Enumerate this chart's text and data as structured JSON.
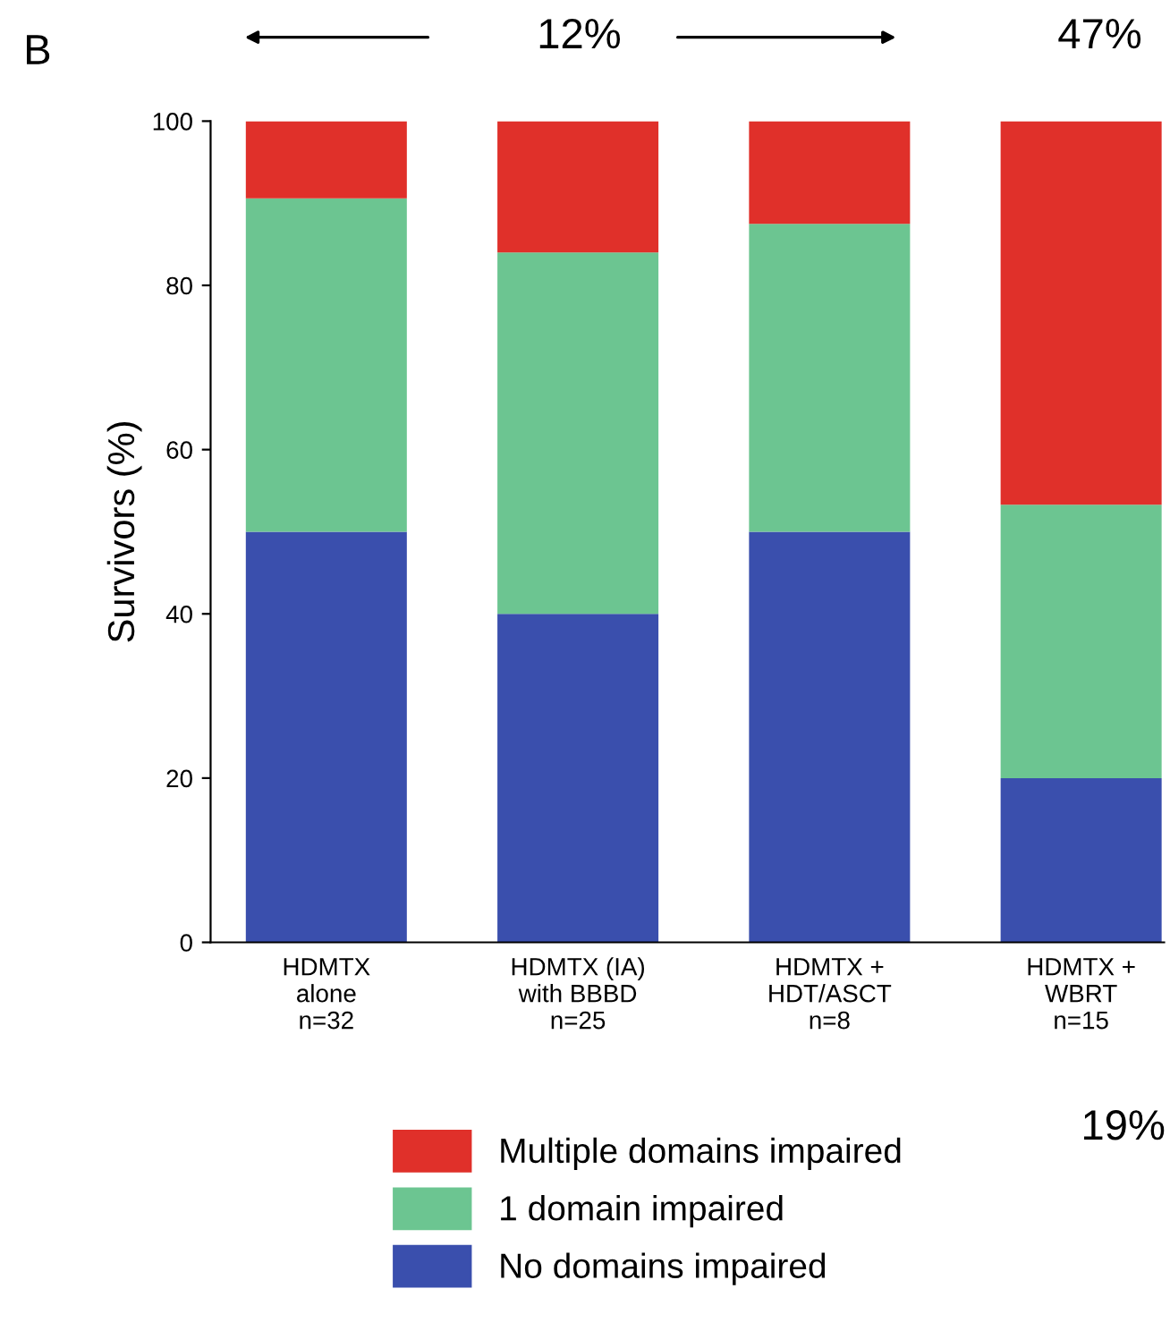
{
  "chart_data": {
    "type": "bar",
    "stacked": true,
    "title": "B",
    "ylabel": "Survivors (%)",
    "categories": [
      "HDMTX\nalone\nn=32",
      "HDMTX (IA)\nwith BBBD\nn=25",
      "HDMTX +\nHDT/ASCT\nn=8",
      "HDMTX +\nWBRT\nn=15"
    ],
    "series": [
      {
        "name": "No domains impaired",
        "color": "#3a4fad",
        "values": [
          50,
          40,
          50,
          20
        ]
      },
      {
        "name": "1 domain impaired",
        "color": "#6cc591",
        "values": [
          40.6,
          44,
          37.5,
          33.3
        ]
      },
      {
        "name": "Multiple domains impaired",
        "color": "#e0302a",
        "values": [
          9.4,
          16,
          12.5,
          46.7
        ]
      }
    ],
    "ylim": [
      0,
      100
    ],
    "yticks": [
      0,
      20,
      40,
      60,
      80,
      100
    ],
    "grid": false,
    "legend": "bottom",
    "annotations": [
      "12%",
      "47%",
      "19%"
    ]
  }
}
